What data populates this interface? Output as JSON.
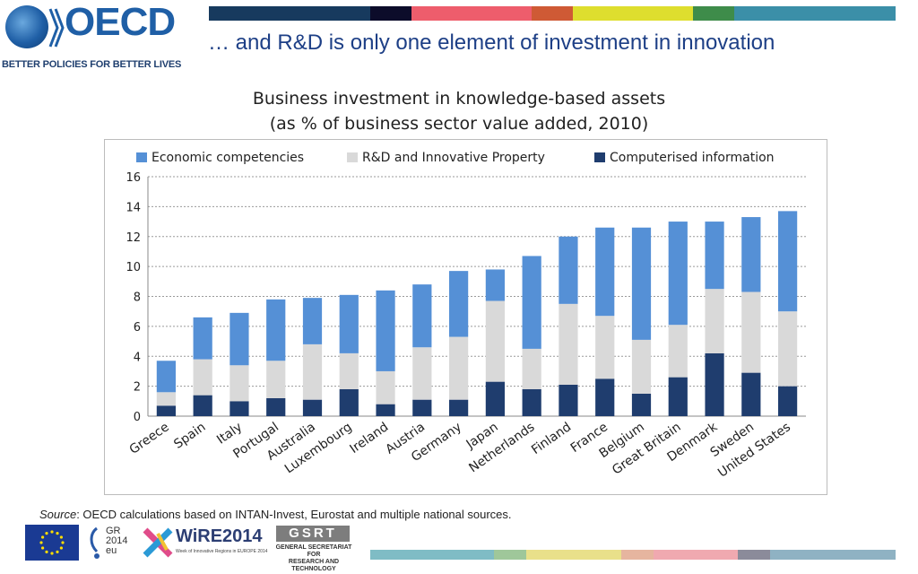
{
  "header": {
    "logo_text": "OECD",
    "logo_tagline": "BETTER POLICIES FOR BETTER LIVES",
    "slide_title": "… and R&D is only one element of investment in innovation",
    "top_bar_colors": [
      "#173a5e",
      "#0c0c2a",
      "#ee5d6c",
      "#cf5a35",
      "#dede2e",
      "#3e8c4a",
      "#3b8fa8"
    ]
  },
  "chart_heading": {
    "line1": "Business investment in knowledge-based  assets",
    "line2": "(as % of business sector value added, 2010)"
  },
  "chart_data": {
    "type": "bar",
    "stacked": true,
    "categories": [
      "Greece",
      "Spain",
      "Italy",
      "Portugal",
      "Australia",
      "Luxembourg",
      "Ireland",
      "Austria",
      "Germany",
      "Japan",
      "Netherlands",
      "Finland",
      "France",
      "Belgium",
      "Great Britain",
      "Denmark",
      "Sweden",
      "United States"
    ],
    "series": [
      {
        "name": "Computerised information",
        "color": "#1f3d6e",
        "values": [
          0.7,
          1.4,
          1.0,
          1.2,
          1.1,
          1.8,
          0.8,
          1.1,
          1.1,
          2.3,
          1.8,
          2.1,
          2.5,
          1.5,
          2.6,
          4.2,
          2.9,
          2.0
        ]
      },
      {
        "name": "R&D and Innovative Property",
        "color": "#d9d9d9",
        "values": [
          0.9,
          2.4,
          2.4,
          2.5,
          3.7,
          2.4,
          2.2,
          3.5,
          4.2,
          5.4,
          2.7,
          5.4,
          4.2,
          3.6,
          3.5,
          4.3,
          5.4,
          5.0
        ]
      },
      {
        "name": "Economic competencies",
        "color": "#5590d6",
        "values": [
          2.1,
          2.8,
          3.5,
          4.1,
          3.1,
          3.9,
          5.4,
          4.2,
          4.4,
          2.1,
          6.2,
          4.5,
          5.9,
          7.5,
          6.9,
          4.5,
          5.0,
          6.7
        ]
      }
    ],
    "legend_order": [
      "Economic competencies",
      "R&D and Innovative Property",
      "Computerised information"
    ],
    "legend_position": "top",
    "ylim": [
      0,
      16
    ],
    "yticks": [
      0,
      2,
      4,
      6,
      8,
      10,
      12,
      14,
      16
    ],
    "grid": true,
    "xlabel": "",
    "ylabel": ""
  },
  "source": {
    "prefix": "Source",
    "text": ": OECD calculations based on INTAN-Invest, Eurostat and  multiple national sources."
  },
  "footer": {
    "gr_text": "GR 2014 eu",
    "wire_text": "WiRE2014",
    "wire_sub": "Week of Innovative Regions in EUROPE 2014",
    "gsrt_title": "GSRT",
    "gsrt_sub1": "GENERAL SECRETARIAT FOR",
    "gsrt_sub2": "RESEARCH AND TECHNOLOGY",
    "bottom_bar_colors": [
      "#7fbcc5",
      "#9fc79a",
      "#e9e08a",
      "#e6b59f",
      "#f0a9b0",
      "#8b8b9a",
      "#8fb2c3"
    ]
  }
}
